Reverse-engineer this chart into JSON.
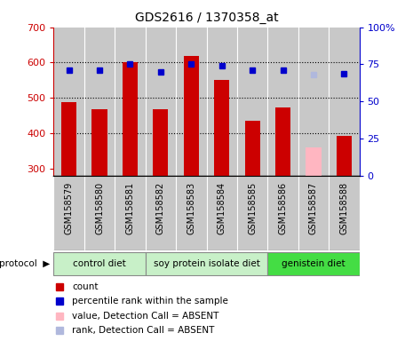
{
  "title": "GDS2616 / 1370358_at",
  "samples": [
    "GSM158579",
    "GSM158580",
    "GSM158581",
    "GSM158582",
    "GSM158583",
    "GSM158584",
    "GSM158585",
    "GSM158586",
    "GSM158587",
    "GSM158588"
  ],
  "bar_values": [
    488,
    468,
    601,
    468,
    618,
    550,
    435,
    473,
    360,
    393
  ],
  "bar_absent": [
    false,
    false,
    false,
    false,
    false,
    false,
    false,
    false,
    true,
    false
  ],
  "percentile_values": [
    71,
    71,
    75,
    70,
    75,
    74,
    71,
    71,
    68,
    69
  ],
  "percentile_absent": [
    false,
    false,
    false,
    false,
    false,
    false,
    false,
    false,
    true,
    false
  ],
  "ylim_left": [
    280,
    700
  ],
  "ylim_right": [
    0,
    100
  ],
  "yticks_left": [
    300,
    400,
    500,
    600,
    700
  ],
  "yticks_right": [
    0,
    25,
    50,
    75,
    100
  ],
  "groups": [
    {
      "label": "control diet",
      "start": 0,
      "end": 3
    },
    {
      "label": "soy protein isolate diet",
      "start": 3,
      "end": 7
    },
    {
      "label": "genistein diet",
      "start": 7,
      "end": 10
    }
  ],
  "group_colors": [
    "#c8f0c8",
    "#c8f0c8",
    "#44dd44"
  ],
  "bar_color_present": "#cc0000",
  "bar_color_absent": "#ffb6c1",
  "dot_color_present": "#0000cc",
  "dot_color_absent": "#b0b8dd",
  "col_bg_color": "#c8c8c8",
  "bar_width": 0.5,
  "legend_items": [
    {
      "label": "count",
      "color": "#cc0000"
    },
    {
      "label": "percentile rank within the sample",
      "color": "#0000cc"
    },
    {
      "label": "value, Detection Call = ABSENT",
      "color": "#ffb6c1"
    },
    {
      "label": "rank, Detection Call = ABSENT",
      "color": "#b0b8dd"
    }
  ]
}
